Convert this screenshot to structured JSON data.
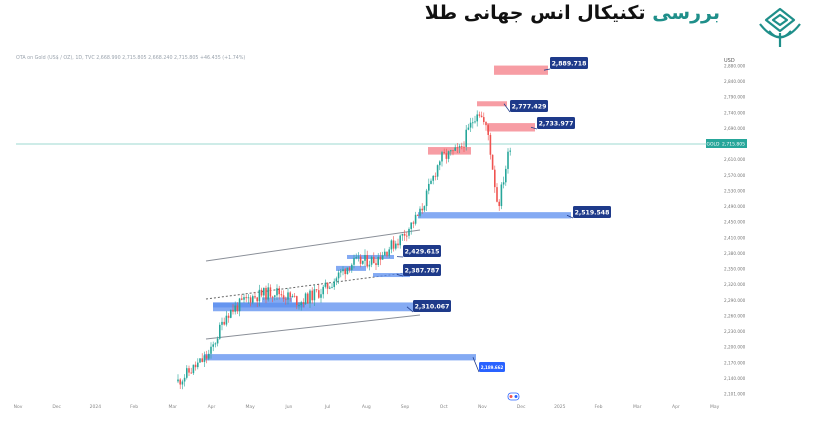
{
  "header": {
    "title_plain": "بررسی",
    "title_rest": "تکنیکال انس جهانی طلا"
  },
  "colors": {
    "accent_teal": "#1f8f8a",
    "demand_zone": "#5b8def",
    "supply_zone": "#f47c86",
    "label_blue": "#2962ff",
    "label_dark": "#1e3a8a",
    "candle_up": "#26a69a",
    "candle_down": "#ef5350"
  },
  "chart_data": {
    "type": "candlestick",
    "instrument_line": "OTA on Gold (US$ / OZ), 1D, TVC  2,668.990  2,715.805  2,668.240  2,715.805  +46.435 (+1.74%)",
    "currency": "USD",
    "price_axis_ticks": [
      "2,880.000",
      "2,840.000",
      "2,790.000",
      "2,740.000",
      "2,690.000",
      "2,650.000",
      "2,610.000",
      "2,570.000",
      "2,530.000",
      "2,490.000",
      "2,450.000",
      "2,410.000",
      "2,380.000",
      "2,350.000",
      "2,320.000",
      "2,290.000",
      "2,260.000",
      "2,230.000",
      "2,200.000",
      "2,170.000",
      "2,140.000",
      "2,101.000"
    ],
    "time_axis_ticks": [
      "Nov",
      "Dec",
      "2024",
      "Feb",
      "Mar",
      "Apr",
      "May",
      "Jun",
      "Jul",
      "Aug",
      "Sep",
      "Oct",
      "Nov",
      "Dec",
      "2025",
      "Feb",
      "Mar",
      "Apr",
      "May"
    ],
    "current_price": {
      "symbol": "GOLD",
      "value": "2,715.805"
    },
    "ylim": [
      2101,
      2900
    ],
    "trend": {
      "start": 2160,
      "end": 2716,
      "low_point": {
        "date": "Nov",
        "price": 2545
      }
    },
    "zones": [
      {
        "type": "supply",
        "label": "2,889.718",
        "price_top": 2882,
        "price_bottom": 2860
      },
      {
        "type": "supply",
        "label": "2,777.429",
        "price_top": 2797,
        "price_bottom": 2785
      },
      {
        "type": "supply",
        "label": "2,733.977",
        "price_top": 2745,
        "price_bottom": 2725
      },
      {
        "type": "supply",
        "label": "",
        "price_top": 2688,
        "price_bottom": 2670
      },
      {
        "type": "demand",
        "label": "2,519.548",
        "price_top": 2533,
        "price_bottom": 2518
      },
      {
        "type": "demand",
        "label": "2,429.615",
        "price_top": 2431,
        "price_bottom": 2423
      },
      {
        "type": "demand",
        "label": "2,387.787",
        "price_top": 2388,
        "price_bottom": 2381
      },
      {
        "type": "demand",
        "label": "2,310.067",
        "price_top": 2318,
        "price_bottom": 2297
      },
      {
        "type": "demand",
        "label": "2,189.662",
        "price_top": 2195,
        "price_bottom": 2180
      }
    ]
  }
}
